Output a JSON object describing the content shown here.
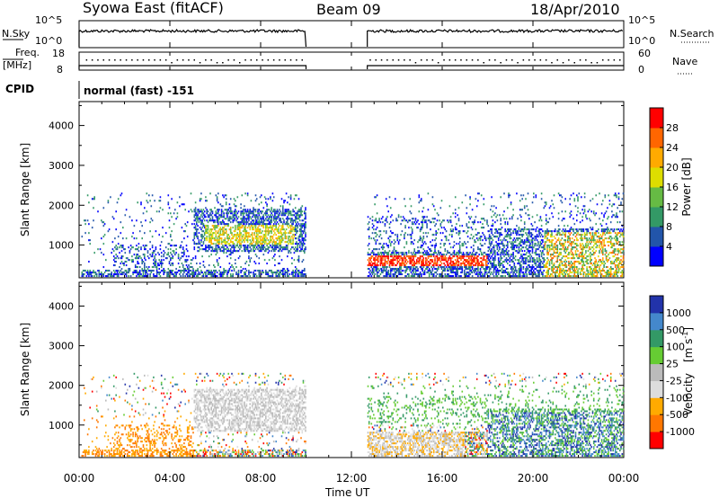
{
  "header": {
    "station": "Syowa East (fitACF)",
    "beam": "Beam 09",
    "date": "18/Apr/2010"
  },
  "summary_panels": {
    "nsky_label": "N.Sky",
    "nsky_ticks": [
      "10^5",
      "10^0"
    ],
    "nsearch_label": "N.Search",
    "nsearch_ticks": [
      "10^5",
      "10^0"
    ],
    "freq_label": "Freq.",
    "freq_unit": "[MHz]",
    "freq_ticks": [
      "18",
      "8"
    ],
    "nave_label": "Nave",
    "nave_ticks": [
      "60",
      "0"
    ],
    "cpid_label": "CPID",
    "cpid_text": "normal (fast) -151"
  },
  "colors": {
    "power_scale": [
      "#0000ff",
      "#2255aa",
      "#339966",
      "#66bb44",
      "#dddd00",
      "#ffaa00",
      "#ff6600",
      "#ff0000"
    ],
    "velocity_scale": [
      "#2233aa",
      "#4488cc",
      "#339966",
      "#66cc33",
      "#bbbbbb",
      "#dddddd",
      "#ffaa00",
      "#ff7700",
      "#ff0000"
    ]
  },
  "chart_data": [
    {
      "type": "heatmap",
      "name": "power",
      "ylabel": "Slant Range [km]",
      "yticks": [
        1000,
        2000,
        3000,
        4000
      ],
      "ylim": [
        180,
        4600
      ],
      "xlim": [
        0,
        24
      ],
      "xticks": [
        "00:00",
        "04:00",
        "08:00",
        "12:00",
        "16:00",
        "20:00",
        "00:00"
      ],
      "data_gap_hours": [
        10.0,
        12.7
      ],
      "colorbar": {
        "label": "Power [dB]",
        "ticks": [
          "28",
          "24",
          "20",
          "16",
          "12",
          "8",
          "4"
        ]
      }
    },
    {
      "type": "heatmap",
      "name": "velocity",
      "ylabel": "Slant Range [km]",
      "yticks": [
        1000,
        2000,
        3000,
        4000
      ],
      "ylim": [
        180,
        4600
      ],
      "xlim": [
        0,
        24
      ],
      "xlabel": "Time UT",
      "xticks": [
        "00:00",
        "04:00",
        "08:00",
        "12:00",
        "16:00",
        "20:00",
        "00:00"
      ],
      "data_gap_hours": [
        10.0,
        12.7
      ],
      "colorbar": {
        "label": "Velocity",
        "unit": "[m s",
        "unit_sup": "-1",
        "unit_close": "]",
        "ticks": [
          "1000",
          "500",
          "100",
          "25",
          "-25",
          "-100",
          "-500",
          "-1000"
        ]
      }
    }
  ]
}
